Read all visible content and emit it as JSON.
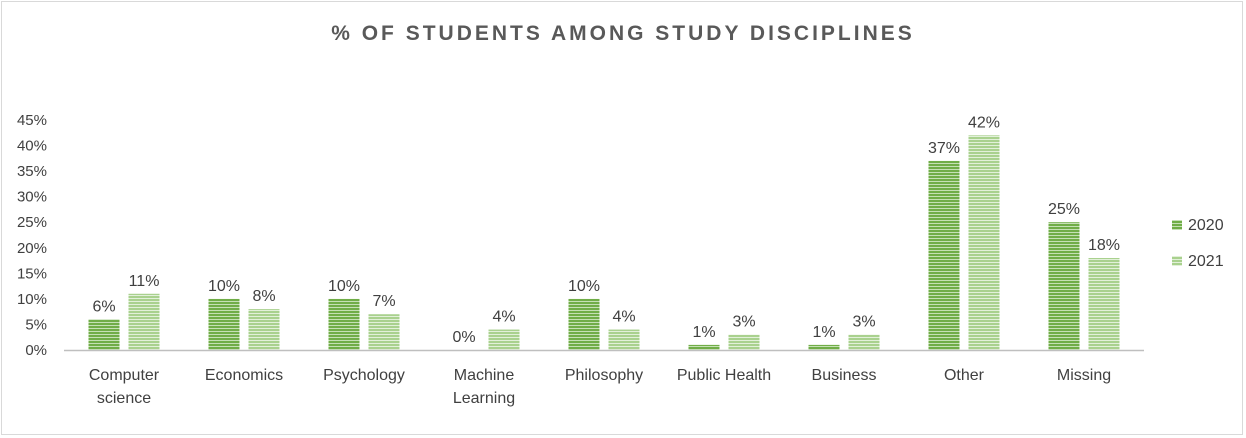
{
  "chart_data": {
    "type": "bar",
    "title": "% OF STUDENTS AMONG STUDY DISCIPLINES",
    "xlabel": "",
    "ylabel": "",
    "categories": [
      [
        "Computer",
        "science"
      ],
      [
        "Economics"
      ],
      [
        "Psychology"
      ],
      [
        "Machine",
        "Learning"
      ],
      [
        "Philosophy"
      ],
      [
        "Public Health"
      ],
      [
        "Business"
      ],
      [
        "Other"
      ],
      [
        "Missing"
      ]
    ],
    "series": [
      {
        "name": "2020",
        "color": "#70ad47",
        "values": [
          6,
          10,
          10,
          0,
          10,
          1,
          1,
          37,
          25
        ],
        "labels": [
          "6%",
          "10%",
          "10%",
          "0%",
          "10%",
          "1%",
          "1%",
          "37%",
          "25%"
        ]
      },
      {
        "name": "2021",
        "color": "#a9d18e",
        "values": [
          11,
          8,
          7,
          4,
          4,
          3,
          3,
          42,
          18
        ],
        "labels": [
          "11%",
          "8%",
          "7%",
          "4%",
          "4%",
          "3%",
          "3%",
          "42%",
          "18%"
        ]
      }
    ],
    "ylim": [
      0,
      45
    ],
    "yticks": [
      0,
      5,
      10,
      15,
      20,
      25,
      30,
      35,
      40,
      45
    ],
    "ytick_labels": [
      "0%",
      "5%",
      "10%",
      "15%",
      "20%",
      "25%",
      "30%",
      "35%",
      "40%",
      "45%"
    ],
    "grid": false,
    "legend_position": "right"
  }
}
